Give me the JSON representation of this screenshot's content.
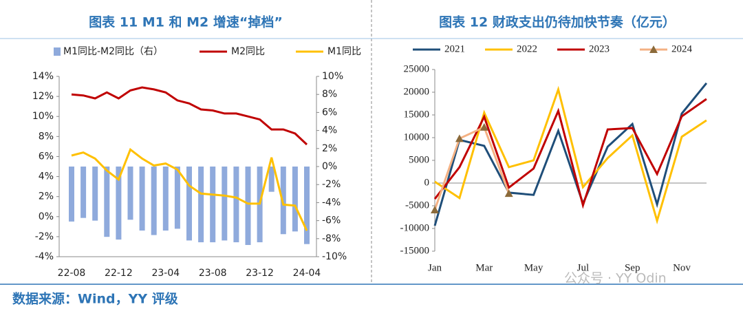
{
  "chart_data": [
    {
      "type": "combo",
      "title": "图表 11 M1 和 M2 增速“掉档”",
      "categories": [
        "22-08",
        null,
        null,
        null,
        "22-12",
        null,
        null,
        null,
        "23-04",
        null,
        null,
        null,
        "23-08",
        null,
        null,
        null,
        "23-12",
        null,
        null,
        null,
        "24-04"
      ],
      "series": [
        {
          "name": "M1同比-M2同比（右）",
          "kind": "bar",
          "axis": "y2",
          "color": "#8faadc",
          "values": [
            -6.1,
            -5.7,
            -6.0,
            -7.8,
            -8.1,
            -5.9,
            -7.1,
            -7.6,
            -7.1,
            -6.9,
            -8.2,
            -8.4,
            -8.4,
            -8.2,
            -8.4,
            -8.7,
            -8.4,
            -2.8,
            -7.5,
            -7.2,
            -8.6
          ]
        },
        {
          "name": "M2同比",
          "kind": "line",
          "color": "#c00000",
          "values": [
            12.2,
            12.1,
            11.8,
            12.4,
            11.8,
            12.6,
            12.9,
            12.7,
            12.4,
            11.6,
            11.3,
            10.7,
            10.6,
            10.3,
            10.3,
            10.0,
            9.7,
            8.7,
            8.7,
            8.3,
            7.2
          ]
        },
        {
          "name": "M1同比",
          "kind": "line",
          "color": "#ffc000",
          "values": [
            6.1,
            6.4,
            5.8,
            4.6,
            3.7,
            6.7,
            5.8,
            5.1,
            5.3,
            4.7,
            3.1,
            2.3,
            2.2,
            2.1,
            1.9,
            1.3,
            1.3,
            5.9,
            1.2,
            1.1,
            -1.4
          ]
        }
      ],
      "ylim": [
        -4,
        14
      ],
      "yticks": [
        {
          "value": -4,
          "label": "-4%"
        },
        {
          "value": -2,
          "label": "-2%"
        },
        {
          "value": 0,
          "label": "0%"
        },
        {
          "value": 2,
          "label": "2%"
        },
        {
          "value": 4,
          "label": "4%"
        },
        {
          "value": 6,
          "label": "6%"
        },
        {
          "value": 8,
          "label": "8%"
        },
        {
          "value": 10,
          "label": "10%"
        },
        {
          "value": 12,
          "label": "12%"
        },
        {
          "value": 14,
          "label": "14%"
        }
      ],
      "y2lim": [
        -10,
        10
      ],
      "y2ticks": [
        {
          "value": -10,
          "label": "-10%"
        },
        {
          "value": -8,
          "label": "-8%"
        },
        {
          "value": -6,
          "label": "-6%"
        },
        {
          "value": -4,
          "label": "-4%"
        },
        {
          "value": -2,
          "label": "-2%"
        },
        {
          "value": 0,
          "label": "0%"
        },
        {
          "value": 2,
          "label": "2%"
        },
        {
          "value": 4,
          "label": "4%"
        },
        {
          "value": 6,
          "label": "6%"
        },
        {
          "value": 8,
          "label": "8%"
        },
        {
          "value": 10,
          "label": "10%"
        }
      ],
      "grid": false
    },
    {
      "type": "line",
      "title": "图表 12 财政支出仍待加快节奏（亿元）",
      "categories": [
        "Jan",
        null,
        "Mar",
        null,
        "May",
        null,
        "Jul",
        null,
        "Sep",
        null,
        "Nov",
        null
      ],
      "series": [
        {
          "name": "2021",
          "color": "#1f4e79",
          "values": [
            -9400,
            9500,
            8200,
            -2100,
            -2600,
            11500,
            -4500,
            8000,
            13000,
            -4700,
            15300,
            22000
          ]
        },
        {
          "name": "2022",
          "color": "#ffc000",
          "values": [
            300,
            -3300,
            15500,
            3500,
            5000,
            20600,
            -900,
            5500,
            10500,
            -8300,
            10200,
            13800
          ]
        },
        {
          "name": "2023",
          "color": "#c00000",
          "values": [
            -3500,
            3500,
            14600,
            -1000,
            3200,
            15900,
            -4900,
            11800,
            12100,
            2000,
            14700,
            18500
          ]
        },
        {
          "name": "2024",
          "color": "#f4b183",
          "marker": "triangle",
          "marker_color": "#8b6a3a",
          "values": [
            -5900,
            9800,
            12300,
            -2300,
            null,
            null,
            null,
            null,
            null,
            null,
            null,
            null
          ]
        }
      ],
      "ylim": [
        -15000,
        25000
      ],
      "yticks": [
        -15000,
        -10000,
        -5000,
        0,
        5000,
        10000,
        15000,
        20000,
        25000
      ],
      "grid": false
    }
  ],
  "source": "数据来源：Wind，YY 评级",
  "watermark": "公众号 · YY Odin"
}
